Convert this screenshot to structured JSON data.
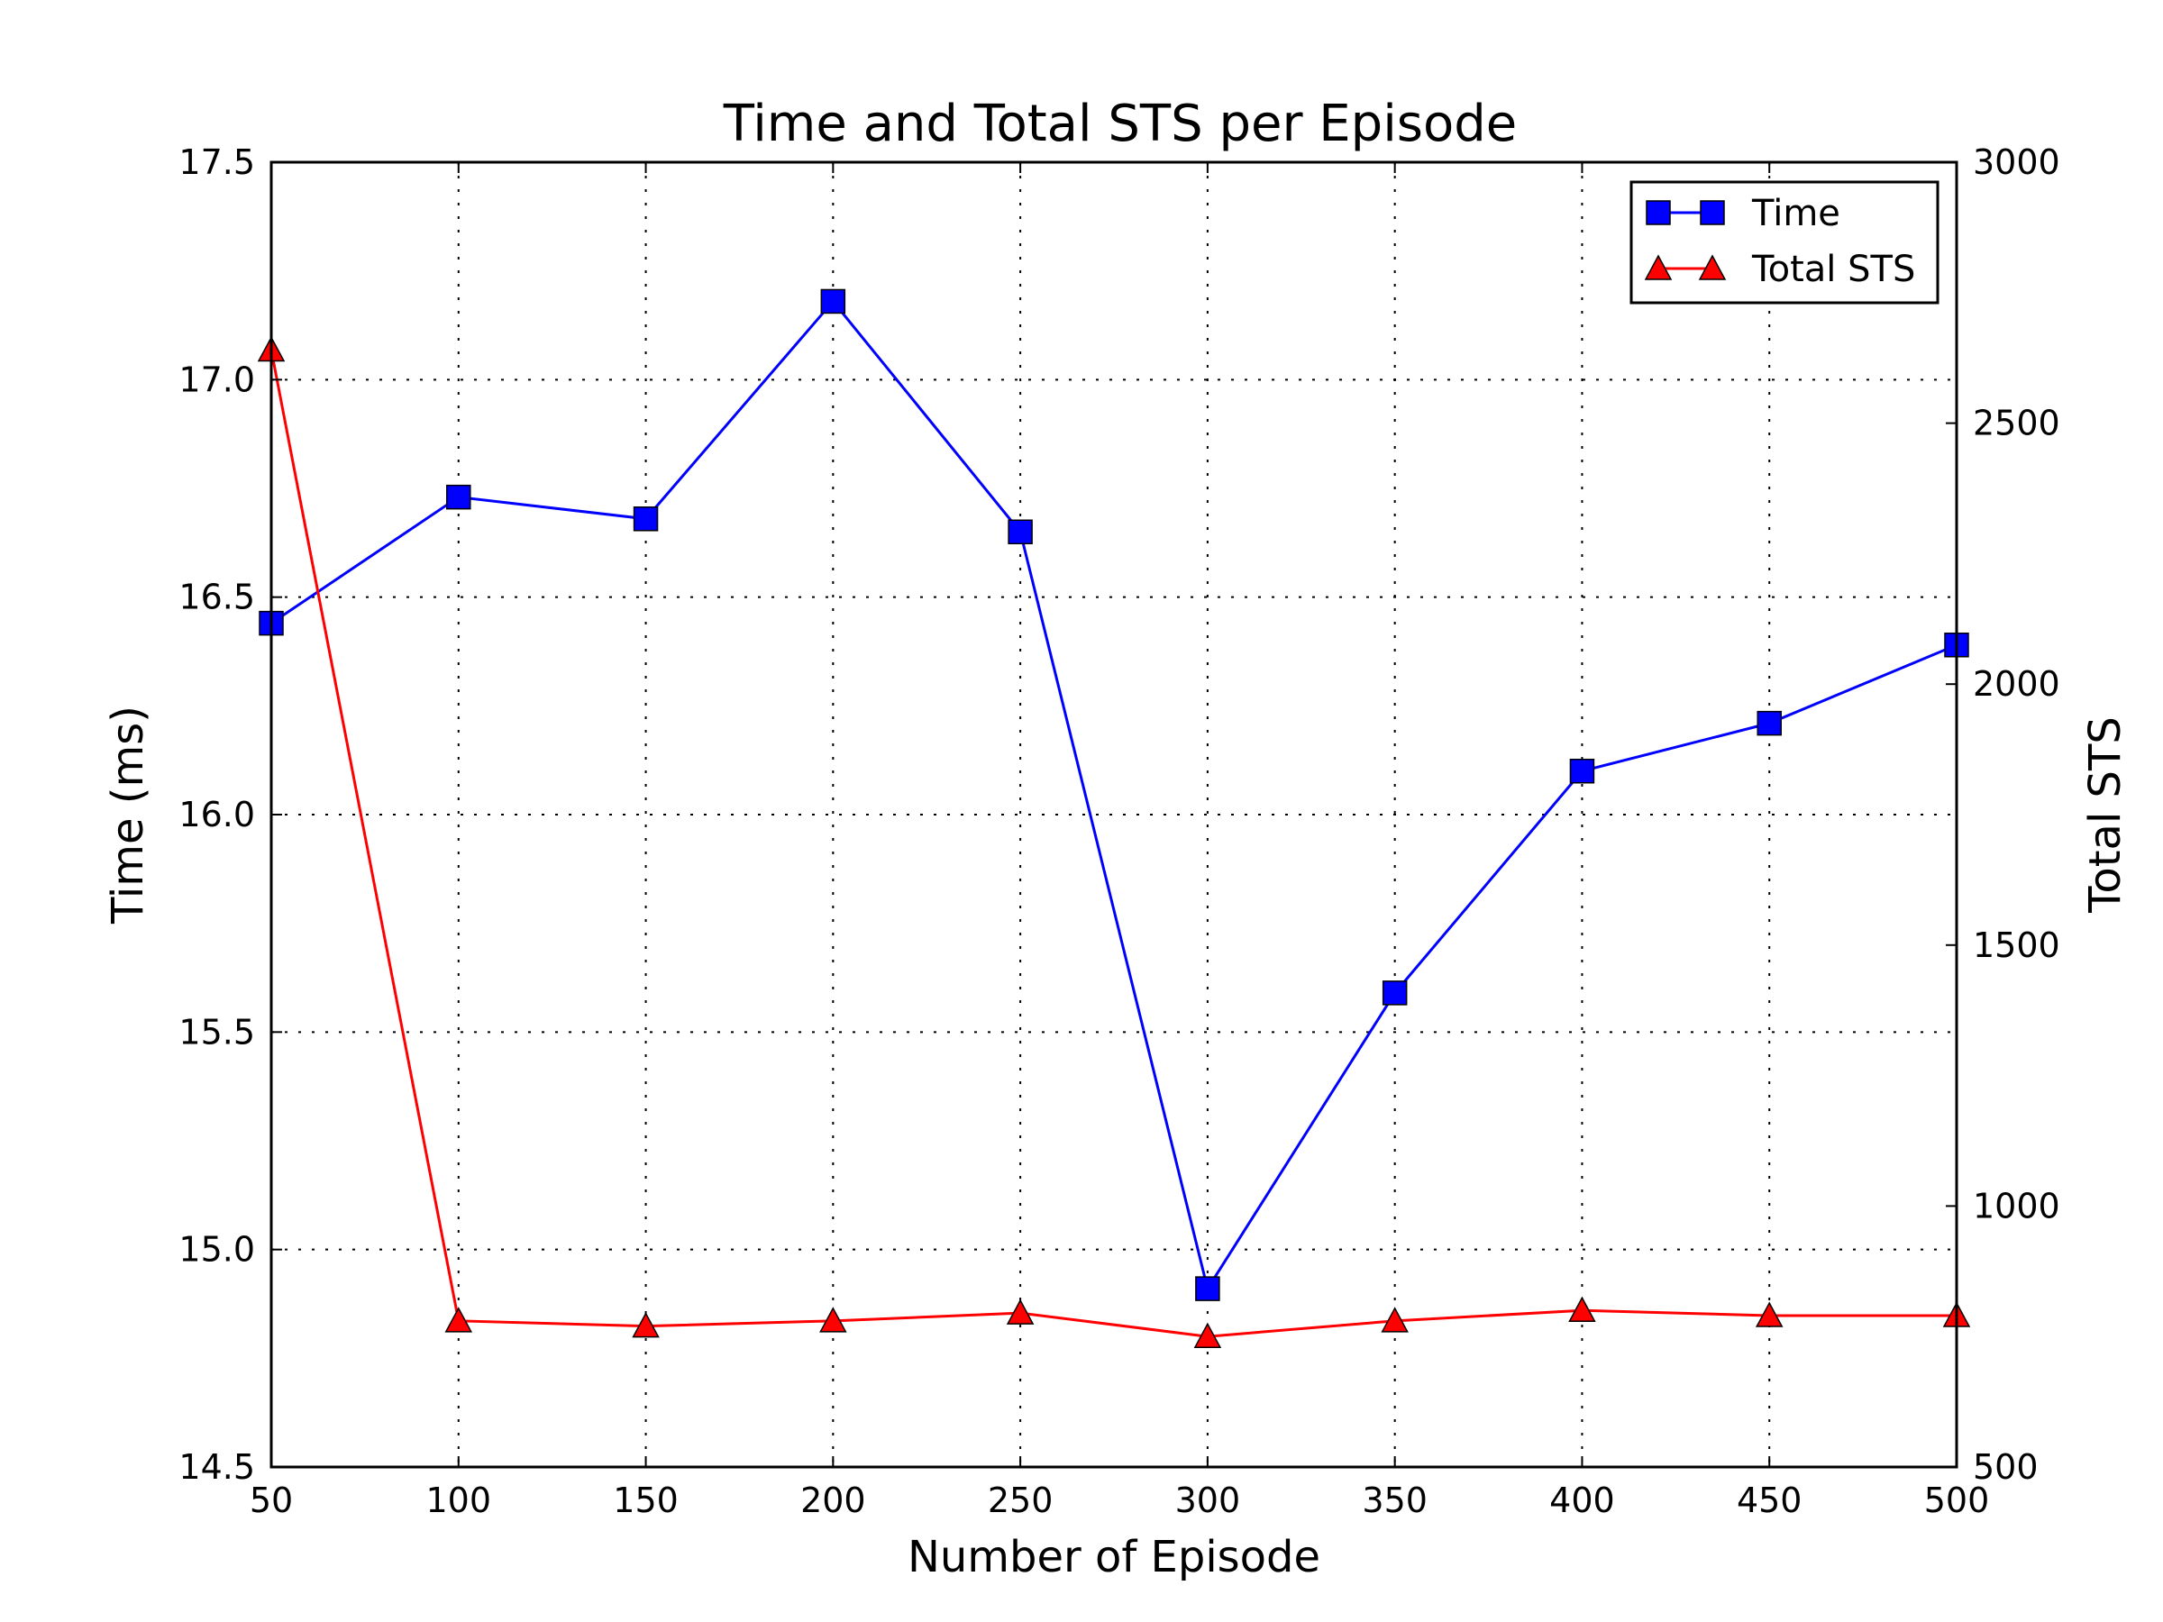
{
  "chart_data": {
    "type": "line",
    "title": "Time and Total STS per Episode",
    "xlabel": "Number of Episode",
    "ylabel": "Time (ms)",
    "y2label": "Total STS",
    "x": [
      50,
      100,
      150,
      200,
      250,
      300,
      350,
      400,
      450,
      500
    ],
    "xlim": [
      50,
      500
    ],
    "xticks": [
      "50",
      "100",
      "150",
      "200",
      "250",
      "300",
      "350",
      "400",
      "450",
      "500"
    ],
    "ylim": [
      14.5,
      17.5
    ],
    "yticks": [
      "14.5",
      "15.0",
      "15.5",
      "16.0",
      "16.5",
      "17.0",
      "17.5"
    ],
    "y2lim": [
      500,
      3000
    ],
    "y2ticks": [
      "500",
      "1000",
      "1500",
      "2000",
      "2500",
      "3000"
    ],
    "grid": true,
    "legend_position": "top-right",
    "series": [
      {
        "name": "Time",
        "axis": "left",
        "color": "#0000ff",
        "marker": "square",
        "values": [
          16.44,
          16.73,
          16.68,
          17.18,
          16.65,
          14.91,
          15.59,
          16.1,
          16.21,
          16.39
        ]
      },
      {
        "name": "Total STS",
        "axis": "right",
        "color": "#ff0000",
        "marker": "triangle",
        "values": [
          2640,
          780,
          770,
          780,
          795,
          750,
          780,
          800,
          790,
          790
        ]
      }
    ]
  }
}
